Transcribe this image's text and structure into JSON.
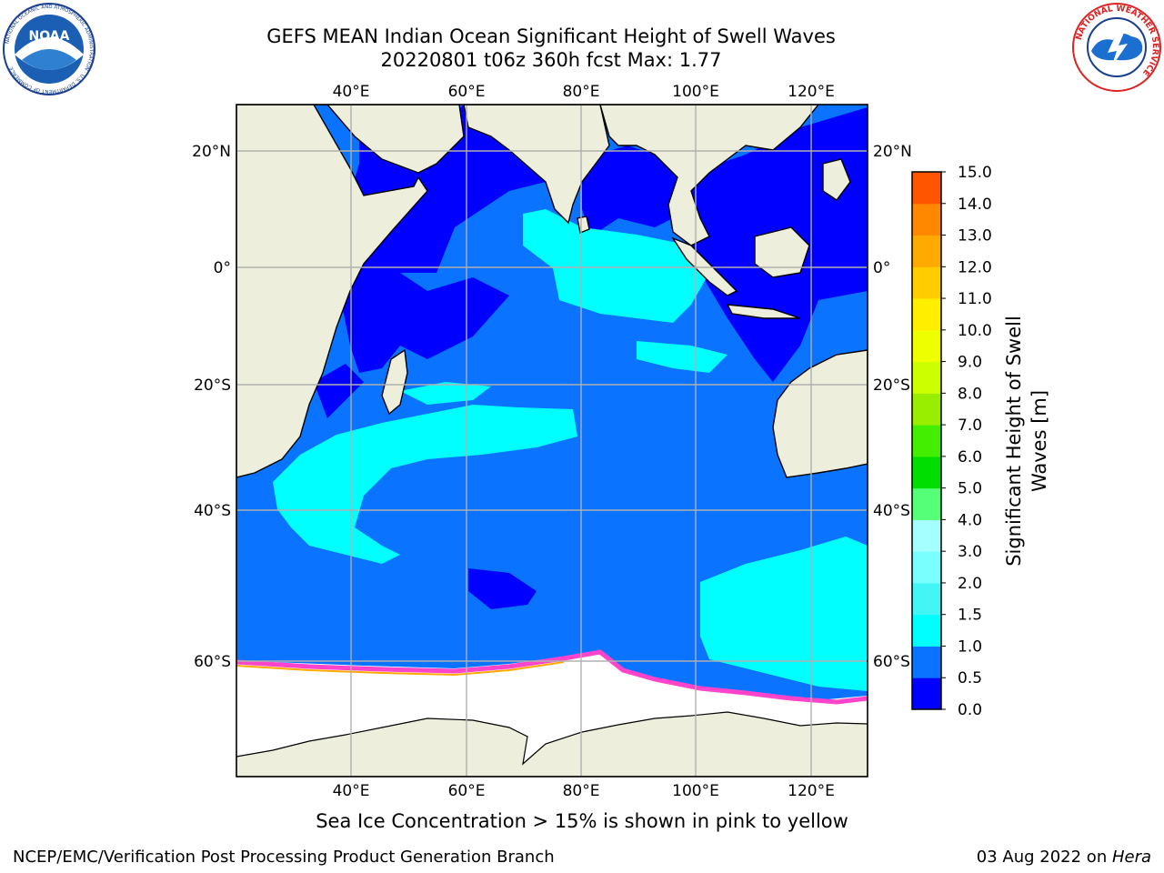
{
  "header": {
    "title_line1": "GEFS MEAN Indian Ocean Significant Height of Swell Waves",
    "title_line2": "20220801 t06z 360h fcst   Max: 1.77"
  },
  "logos": {
    "left": {
      "name": "NOAA",
      "ring_text": "NATIONAL OCEANIC AND ATMOSPHERIC ADMINISTRATION · U.S. DEPARTMENT OF COMMERCE",
      "center_text": "NOAA",
      "icon": "noaa-seal-icon"
    },
    "right": {
      "name": "NWS",
      "ring_text": "NATIONAL WEATHER SERVICE",
      "icon": "nws-seal-icon"
    }
  },
  "map": {
    "lon_labels": [
      "40°E",
      "60°E",
      "80°E",
      "100°E",
      "120°E"
    ],
    "lat_labels": [
      "20°N",
      "0°",
      "20°S",
      "40°S",
      "60°S"
    ],
    "colors": {
      "land": "#eeeedd",
      "ice": "#ffffff",
      "grid": "#b0b0b0"
    }
  },
  "colorbar": {
    "label_line1": "Significant Height of Swell",
    "label_line2": "Waves [m]",
    "ticks": [
      "0.0",
      "0.5",
      "1.0",
      "1.5",
      "2.0",
      "3.0",
      "4.0",
      "5.0",
      "6.0",
      "7.0",
      "8.0",
      "9.0",
      "10.0",
      "11.0",
      "12.0",
      "13.0",
      "14.0",
      "15.0"
    ],
    "colors": [
      "#0000ff",
      "#0a73ff",
      "#00ffff",
      "#44f5f5",
      "#7affff",
      "#a6ffff",
      "#55ff77",
      "#00dd00",
      "#44ee00",
      "#99ee00",
      "#ccff00",
      "#eeff00",
      "#ffee00",
      "#ffcc00",
      "#ffaa00",
      "#ff8800",
      "#ff5500",
      "#ff2200"
    ]
  },
  "caption": "Sea Ice Concentration > 15% is shown in pink to yellow",
  "footer": {
    "left": "NCEP/EMC/Verification Post Processing Product Generation Branch",
    "right_prefix": "03 Aug 2022 on ",
    "right_host": "Hera"
  }
}
